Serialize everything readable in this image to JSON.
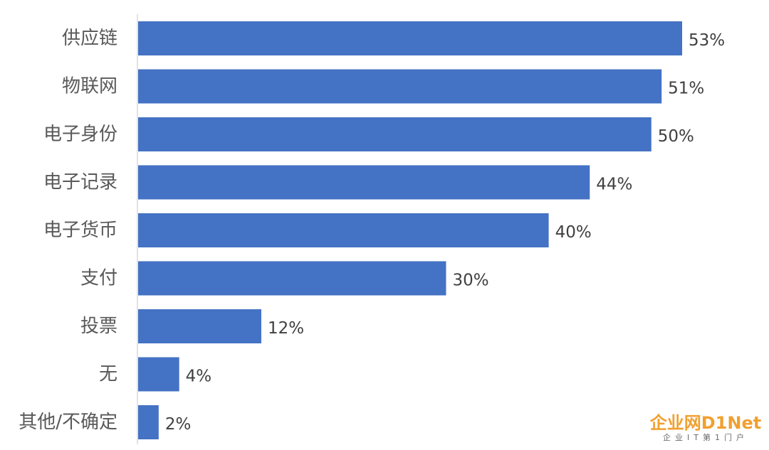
{
  "chart_data": {
    "type": "bar",
    "orientation": "horizontal",
    "categories": [
      "供应链",
      "物联网",
      "电子身份",
      "电子记录",
      "电子货币",
      "支付",
      "投票",
      "无",
      "其他/不确定"
    ],
    "values": [
      53,
      51,
      50,
      44,
      40,
      30,
      12,
      4,
      2
    ],
    "value_labels": [
      "53%",
      "51%",
      "50%",
      "44%",
      "40%",
      "30%",
      "12%",
      "4%",
      "2%"
    ],
    "unit": "%",
    "bar_color": "#4472c4",
    "xlim": [
      0,
      60
    ],
    "grid": false,
    "legend": "none"
  },
  "watermark": {
    "main": "企业网D1Net",
    "sub": "企业IT第1门户"
  }
}
